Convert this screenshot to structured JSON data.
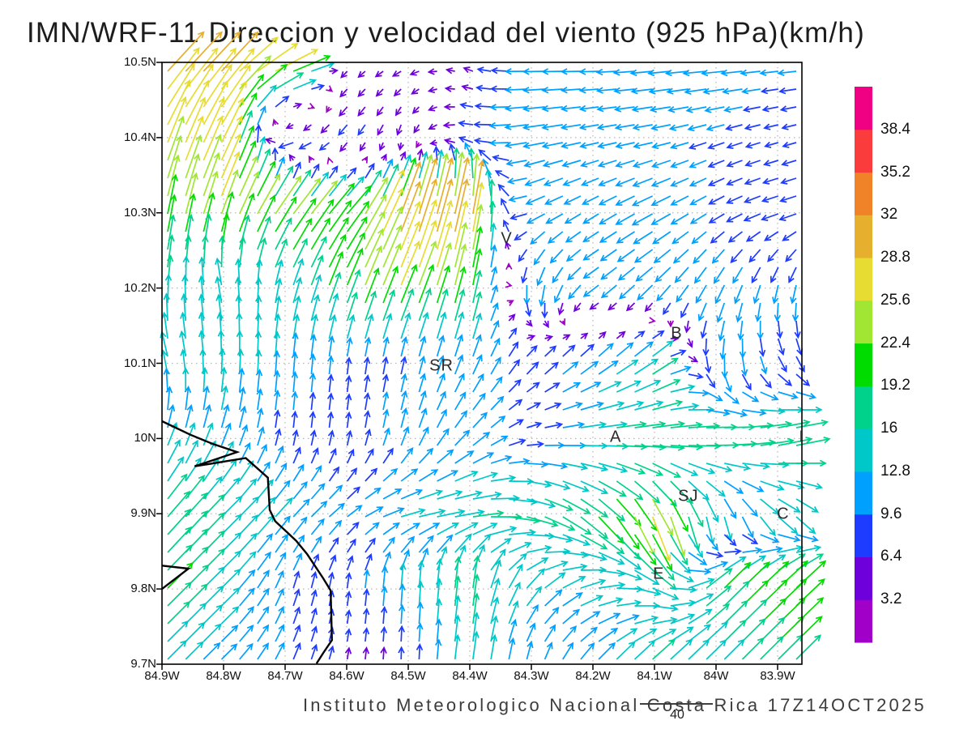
{
  "title": "IMN/WRF-11 Direccion y velocidad del viento (925 hPa)(km/h)",
  "footer": {
    "text": "Instituto Meteorologico Nacional Costa Rica 17Z14OCT2025",
    "reference_label": "40",
    "reference_speed_kmh": 40
  },
  "axes": {
    "lat_ticks": [
      {
        "label": "10.5N",
        "lat": 10.5
      },
      {
        "label": "10.4N",
        "lat": 10.4
      },
      {
        "label": "10.3N",
        "lat": 10.3
      },
      {
        "label": "10.2N",
        "lat": 10.2
      },
      {
        "label": "10.1N",
        "lat": 10.1
      },
      {
        "label": "10N",
        "lat": 10.0
      },
      {
        "label": "9.9N",
        "lat": 9.9
      },
      {
        "label": "9.8N",
        "lat": 9.8
      },
      {
        "label": "9.7N",
        "lat": 9.7
      }
    ],
    "lon_ticks": [
      {
        "label": "84.9W",
        "lon": 84.9
      },
      {
        "label": "84.8W",
        "lon": 84.8
      },
      {
        "label": "84.7W",
        "lon": 84.7
      },
      {
        "label": "84.6W",
        "lon": 84.6
      },
      {
        "label": "84.5W",
        "lon": 84.5
      },
      {
        "label": "84.4W",
        "lon": 84.4
      },
      {
        "label": "84.3W",
        "lon": 84.3
      },
      {
        "label": "84.2W",
        "lon": 84.2
      },
      {
        "label": "84.1W",
        "lon": 84.1
      },
      {
        "label": "84W",
        "lon": 84.0
      },
      {
        "label": "83.9W",
        "lon": 83.9
      }
    ]
  },
  "colorbar": {
    "labels_top_down": [
      "38.4",
      "35.2",
      "32",
      "28.8",
      "25.6",
      "22.4",
      "19.2",
      "16",
      "12.8",
      "9.6",
      "6.4",
      "3.2"
    ],
    "levels_kmh": [
      3.2,
      6.4,
      9.6,
      12.8,
      16,
      19.2,
      22.4,
      25.6,
      28.8,
      32,
      35.2,
      38.4
    ],
    "colors_low_to_high": [
      "#a000c8",
      "#6e00dc",
      "#1e3cff",
      "#00a0ff",
      "#00c8c8",
      "#00d28c",
      "#00dc00",
      "#a0e632",
      "#e6dc32",
      "#e6af2d",
      "#f08228",
      "#fa3c3c",
      "#f00082"
    ]
  },
  "stations": [
    {
      "label": "V",
      "lon": 84.34,
      "lat": 10.265
    },
    {
      "label": "SR",
      "lon": 84.446,
      "lat": 10.096
    },
    {
      "label": "B",
      "lon": 84.064,
      "lat": 10.139
    },
    {
      "label": "A",
      "lon": 84.163,
      "lat": 10.002
    },
    {
      "label": "I",
      "lon": 83.861,
      "lat": 10.001
    },
    {
      "label": "SJ",
      "lon": 84.045,
      "lat": 9.923
    },
    {
      "label": "C",
      "lon": 83.891,
      "lat": 9.899
    },
    {
      "label": "E",
      "lon": 84.093,
      "lat": 9.819
    }
  ],
  "coastline_lonw_lat": {
    "main": [
      [
        84.9,
        10.023
      ],
      [
        84.854,
        10.005
      ],
      [
        84.818,
        9.993
      ],
      [
        84.778,
        9.982
      ],
      [
        84.847,
        9.963
      ],
      [
        84.764,
        9.974
      ],
      [
        84.728,
        9.948
      ],
      [
        84.725,
        9.905
      ],
      [
        84.716,
        9.89
      ],
      [
        84.695,
        9.874
      ],
      [
        84.682,
        9.864
      ],
      [
        84.664,
        9.846
      ],
      [
        84.638,
        9.814
      ],
      [
        84.626,
        9.798
      ],
      [
        84.624,
        9.732
      ],
      [
        84.638,
        9.715
      ],
      [
        84.649,
        9.701
      ]
    ],
    "spit": [
      [
        84.9,
        9.831
      ],
      [
        84.857,
        9.827
      ],
      [
        84.9,
        9.8
      ]
    ]
  },
  "chart_data": {
    "type": "quiver",
    "title": "IMN/WRF-11 Direccion y velocidad del viento (925 hPa)(km/h)",
    "pressure_level": "925 hPa",
    "units": "km/h",
    "xlabel_ticks_w": [
      84.9,
      84.8,
      84.7,
      84.6,
      84.5,
      84.4,
      84.3,
      84.2,
      84.1,
      84.0,
      83.9
    ],
    "ylabel_ticks_n": [
      10.5,
      10.4,
      10.3,
      10.2,
      10.1,
      10.0,
      9.9,
      9.8,
      9.7
    ],
    "legend_position": "right-colorbar",
    "grid": "dotted 0.1 degree",
    "reference_vector_kmh": 40,
    "wind_field_coarse": {
      "lats_n": [
        10.5,
        10.4,
        10.3,
        10.2,
        10.1,
        10.0,
        9.9,
        9.8,
        9.7
      ],
      "lons_w": [
        84.9,
        84.8,
        84.7,
        84.6,
        84.5,
        84.4,
        84.3,
        84.2,
        84.1,
        84.0,
        83.9
      ],
      "u_east_kmh": [
        [
          21,
          21,
          28,
          -3,
          -5,
          -4,
          -12,
          -10,
          -12,
          -13,
          -10
        ],
        [
          10,
          12,
          -10,
          -5,
          -1,
          -8,
          -12,
          -10,
          -10,
          -9,
          -7
        ],
        [
          4,
          9,
          15,
          13,
          10,
          6,
          -10,
          -8,
          -11,
          -8,
          -9
        ],
        [
          2,
          -3,
          4,
          8,
          10,
          4,
          0,
          -8,
          -8,
          -5,
          -2
        ],
        [
          -4,
          0,
          1,
          1,
          2,
          4,
          6,
          9,
          13,
          0,
          5
        ],
        [
          4,
          4,
          1,
          1,
          3,
          8,
          8,
          16,
          18,
          19,
          19
        ],
        [
          12,
          11,
          9,
          8,
          14,
          17,
          17,
          14,
          9,
          2,
          10
        ],
        [
          14,
          10,
          3,
          1,
          1,
          2,
          10,
          14,
          14,
          14,
          16
        ],
        [
          10,
          8,
          4,
          1,
          0,
          2,
          2,
          8,
          12,
          10,
          13
        ]
      ],
      "v_north_kmh": [
        [
          21,
          21,
          12,
          -3,
          -2,
          2,
          0,
          0,
          -1,
          -1,
          -1
        ],
        [
          25,
          24,
          -4,
          -6,
          -6,
          1,
          -2,
          -2,
          -2,
          -3,
          -2
        ],
        [
          21,
          24,
          20,
          15,
          30,
          31,
          -5,
          -5,
          -6,
          -5,
          -3
        ],
        [
          16,
          14,
          13,
          20,
          24,
          21,
          -13,
          -6,
          -8,
          -10,
          -10
        ],
        [
          13,
          14,
          13,
          9,
          9,
          11,
          7,
          8,
          10,
          -12,
          -8
        ],
        [
          12,
          12,
          8,
          8,
          11,
          8,
          1,
          1,
          1,
          2,
          5
        ],
        [
          14,
          11,
          10,
          6,
          3,
          2,
          -6,
          -14,
          -25,
          -14,
          -10
        ],
        [
          14,
          10,
          9,
          8,
          14,
          18,
          10,
          3,
          -6,
          14,
          15
        ],
        [
          10,
          8,
          9,
          6,
          6,
          15,
          9,
          9,
          12,
          10,
          13
        ]
      ]
    }
  }
}
